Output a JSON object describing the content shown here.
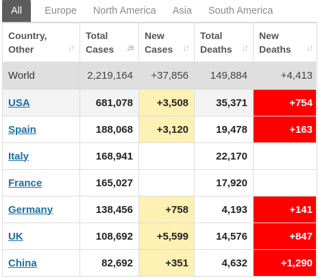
{
  "tabs": [
    "All",
    "Europe",
    "North America",
    "Asia",
    "South America"
  ],
  "active_tab": "All",
  "headers": {
    "country": [
      "Country,",
      "Other"
    ],
    "total_cases": [
      "Total",
      "Cases"
    ],
    "new_cases": [
      "New",
      "Cases"
    ],
    "total_deaths": [
      "Total",
      "Deaths"
    ],
    "new_deaths": [
      "New",
      "Deaths"
    ]
  },
  "sort_icons": {
    "unsorted": "sort-unsorted-icon",
    "sorted_desc": "sort-descending-icon"
  },
  "colors": {
    "new_cases_highlight": "#fff0b3",
    "new_deaths_highlight": "#ff0000",
    "world_row": "#dfdfdf",
    "country_link": "#1a6fa6",
    "active_tab": "#5d5d5d"
  },
  "world": {
    "country": "World",
    "total_cases": "2,219,164",
    "new_cases": "+37,856",
    "total_deaths": "149,884",
    "new_deaths": "+4,413"
  },
  "rows": [
    {
      "country": "USA",
      "total_cases": "681,078",
      "new_cases": "+3,508",
      "total_deaths": "35,371",
      "new_deaths": "+754"
    },
    {
      "country": "Spain",
      "total_cases": "188,068",
      "new_cases": "+3,120",
      "total_deaths": "19,478",
      "new_deaths": "+163"
    },
    {
      "country": "Italy",
      "total_cases": "168,941",
      "new_cases": "",
      "total_deaths": "22,170",
      "new_deaths": ""
    },
    {
      "country": "France",
      "total_cases": "165,027",
      "new_cases": "",
      "total_deaths": "17,920",
      "new_deaths": ""
    },
    {
      "country": "Germany",
      "total_cases": "138,456",
      "new_cases": "+758",
      "total_deaths": "4,193",
      "new_deaths": "+141"
    },
    {
      "country": "UK",
      "total_cases": "108,692",
      "new_cases": "+5,599",
      "total_deaths": "14,576",
      "new_deaths": "+847"
    },
    {
      "country": "China",
      "total_cases": "82,692",
      "new_cases": "+351",
      "total_deaths": "4,632",
      "new_deaths": "+1,290"
    }
  ]
}
